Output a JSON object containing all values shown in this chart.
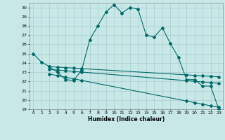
{
  "xlabel": "Humidex (Indice chaleur)",
  "bg_color": "#c8e8e8",
  "grid_color": "#a8cccc",
  "line_color": "#006868",
  "xlim": [
    -0.5,
    23.5
  ],
  "ylim": [
    19,
    30.5
  ],
  "yticks": [
    19,
    20,
    21,
    22,
    23,
    24,
    25,
    26,
    27,
    28,
    29,
    30
  ],
  "xticks": [
    0,
    1,
    2,
    3,
    4,
    5,
    6,
    7,
    8,
    9,
    10,
    11,
    12,
    13,
    14,
    15,
    16,
    17,
    18,
    19,
    20,
    21,
    22,
    23
  ],
  "main_line": {
    "x": [
      0,
      1,
      2,
      3,
      4,
      5,
      6,
      7,
      8,
      9,
      10,
      11,
      12,
      13,
      14,
      15,
      16,
      17,
      18,
      19,
      20,
      21,
      22,
      23
    ],
    "y": [
      25.0,
      24.1,
      23.6,
      23.0,
      22.2,
      22.1,
      23.2,
      26.5,
      28.0,
      29.5,
      30.3,
      29.4,
      30.0,
      29.8,
      27.0,
      26.8,
      27.8,
      26.1,
      24.6,
      22.2,
      22.2,
      21.5,
      21.5,
      19.0
    ]
  },
  "line2": {
    "x": [
      2,
      3,
      4,
      5,
      6,
      19,
      20,
      21,
      22,
      23
    ],
    "y": [
      23.6,
      23.0,
      22.5,
      22.2,
      23.1,
      22.2,
      22.2,
      21.5,
      21.5,
      19.1
    ]
  },
  "line3": {
    "x": [
      2,
      3,
      4,
      5,
      6,
      19,
      20,
      21,
      22,
      23
    ],
    "y": [
      23.3,
      22.8,
      22.2,
      21.9,
      22.7,
      21.6,
      21.5,
      21.0,
      21.5,
      19.0
    ]
  },
  "straight_line1": {
    "x": [
      2,
      23
    ],
    "y": [
      23.6,
      22.5
    ]
  },
  "straight_line2": {
    "x": [
      2,
      23
    ],
    "y": [
      23.3,
      21.8
    ]
  },
  "straight_line3": {
    "x": [
      2,
      23
    ],
    "y": [
      22.8,
      19.2
    ]
  }
}
